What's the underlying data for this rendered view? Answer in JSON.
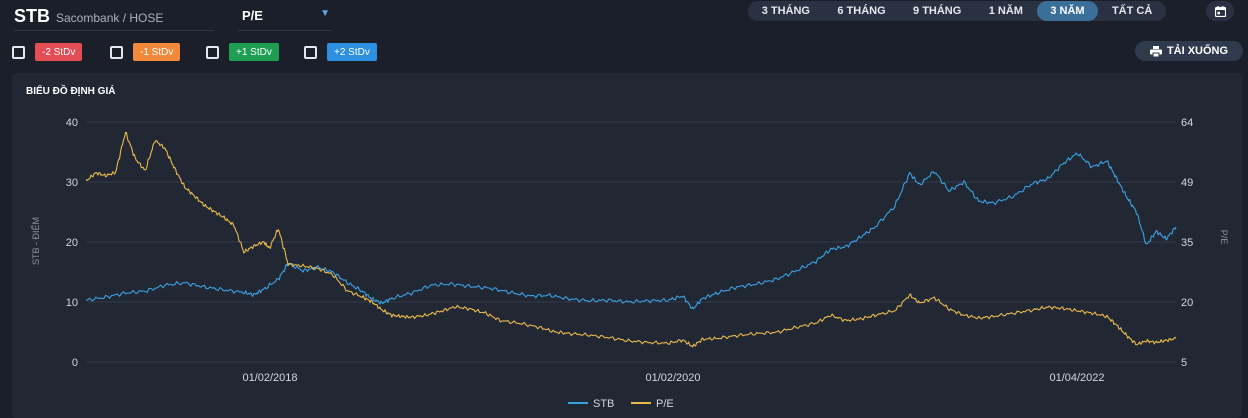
{
  "header": {
    "symbol": "STB",
    "exchange": "Sacombank / HOSE",
    "metric": "P/E"
  },
  "ranges": {
    "items": [
      "3 THÁNG",
      "6 THÁNG",
      "9 THÁNG",
      "1 NĂM",
      "3 NĂM",
      "TẤT CẢ"
    ],
    "active": "3 NĂM"
  },
  "stdv": [
    {
      "label": "-2 StDv",
      "color": "#e34d55",
      "checked": false
    },
    {
      "label": "-1 StDv",
      "color": "#f28a3c",
      "checked": false
    },
    {
      "label": "+1 StDv",
      "color": "#1e9e52",
      "checked": false
    },
    {
      "label": "+2 StDv",
      "color": "#2f8fe0",
      "checked": false
    }
  ],
  "download_label": "TẢI XUỐNG",
  "panel_title": "BIỂU ĐỒ ĐỊNH GIÁ",
  "chart_data": {
    "type": "line",
    "title": "BIỂU ĐỒ ĐỊNH GIÁ",
    "x_ticks": [
      "01/02/2018",
      "01/02/2020",
      "01/04/2022"
    ],
    "y_left": {
      "label": "STB - ĐIỂM",
      "range": [
        0,
        40
      ],
      "ticks": [
        0,
        10,
        20,
        30,
        40
      ]
    },
    "y_right": {
      "label": "P/E",
      "range": [
        5,
        64
      ],
      "ticks": [
        5,
        20,
        35,
        49,
        64
      ]
    },
    "x_index_range": [
      0,
      100
    ],
    "grid": true,
    "legend_position": "bottom",
    "series": [
      {
        "name": "STB",
        "axis": "left",
        "color": "#3aa1e0",
        "points": [
          [
            0,
            10.3
          ],
          [
            2,
            10.8
          ],
          [
            4,
            11.5
          ],
          [
            6,
            11.8
          ],
          [
            8,
            12.8
          ],
          [
            10,
            13.2
          ],
          [
            12,
            12.5
          ],
          [
            14,
            12.0
          ],
          [
            16,
            11.6
          ],
          [
            17,
            11.2
          ],
          [
            18,
            12.1
          ],
          [
            19.5,
            13.8
          ],
          [
            20.5,
            16.5
          ],
          [
            22,
            15.2
          ],
          [
            23.5,
            15.8
          ],
          [
            25,
            15.0
          ],
          [
            26.5,
            13.2
          ],
          [
            28,
            11.8
          ],
          [
            29,
            10.5
          ],
          [
            30,
            9.8
          ],
          [
            31,
            10.6
          ],
          [
            33,
            11.5
          ],
          [
            35,
            12.8
          ],
          [
            37,
            13.0
          ],
          [
            39,
            12.6
          ],
          [
            41,
            12.3
          ],
          [
            43,
            11.6
          ],
          [
            45,
            11.0
          ],
          [
            47,
            11.1
          ],
          [
            49,
            10.5
          ],
          [
            51,
            10.2
          ],
          [
            53,
            10.3
          ],
          [
            55,
            10.0
          ],
          [
            57,
            10.2
          ],
          [
            59,
            10.3
          ],
          [
            60.5,
            11.0
          ],
          [
            61.5,
            8.8
          ],
          [
            62.5,
            10.6
          ],
          [
            64,
            11.5
          ],
          [
            66,
            12.5
          ],
          [
            68,
            13.0
          ],
          [
            70,
            13.8
          ],
          [
            72,
            15.2
          ],
          [
            74,
            16.8
          ],
          [
            75.5,
            18.8
          ],
          [
            77,
            19.2
          ],
          [
            78.5,
            20.8
          ],
          [
            80,
            22.5
          ],
          [
            82,
            26.0
          ],
          [
            83.5,
            31.5
          ],
          [
            84.5,
            29.5
          ],
          [
            86,
            31.8
          ],
          [
            87.5,
            28.5
          ],
          [
            89,
            30.0
          ],
          [
            90.5,
            26.8
          ],
          [
            92,
            26.5
          ],
          [
            94,
            27.6
          ],
          [
            96,
            29.8
          ],
          [
            97.5,
            30.5
          ],
          [
            99,
            33.0
          ],
          [
            100.5,
            34.8
          ],
          [
            102,
            32.5
          ],
          [
            103.5,
            33.5
          ],
          [
            104.5,
            30.5
          ],
          [
            105.5,
            27.5
          ],
          [
            106.5,
            25.0
          ],
          [
            107.5,
            19.5
          ],
          [
            108.5,
            21.8
          ],
          [
            109.5,
            20.5
          ],
          [
            110.5,
            22.5
          ]
        ]
      },
      {
        "name": "P/E",
        "axis": "right",
        "color": "#e8b84c",
        "points": [
          [
            0,
            49.5
          ],
          [
            1,
            51.5
          ],
          [
            2,
            50.8
          ],
          [
            3,
            51.6
          ],
          [
            4,
            61.5
          ],
          [
            5,
            55.0
          ],
          [
            6,
            52.0
          ],
          [
            7,
            59.5
          ],
          [
            8,
            57.5
          ],
          [
            9,
            52.5
          ],
          [
            10,
            48.0
          ],
          [
            11,
            45.8
          ],
          [
            12,
            43.5
          ],
          [
            13,
            42.0
          ],
          [
            14,
            40.5
          ],
          [
            15,
            38.6
          ],
          [
            16,
            32.0
          ],
          [
            17,
            33.5
          ],
          [
            18,
            34.5
          ],
          [
            18.6,
            33.0
          ],
          [
            19.5,
            37.8
          ],
          [
            20.5,
            29.0
          ],
          [
            22,
            28.6
          ],
          [
            23.5,
            28.0
          ],
          [
            25,
            26.5
          ],
          [
            26.5,
            22.5
          ],
          [
            28,
            21.0
          ],
          [
            29,
            19.8
          ],
          [
            30,
            17.8
          ],
          [
            31,
            16.5
          ],
          [
            32,
            16.2
          ],
          [
            33,
            16.0
          ],
          [
            34.5,
            16.5
          ],
          [
            36,
            17.5
          ],
          [
            37.5,
            18.6
          ],
          [
            39,
            18.0
          ],
          [
            40.5,
            17.0
          ],
          [
            42,
            15.2
          ],
          [
            44,
            14.5
          ],
          [
            46,
            13.5
          ],
          [
            47.5,
            12.4
          ],
          [
            49,
            12.0
          ],
          [
            51,
            11.6
          ],
          [
            53,
            11.0
          ],
          [
            55,
            10.2
          ],
          [
            57,
            9.8
          ],
          [
            59,
            9.6
          ],
          [
            60.5,
            10.4
          ],
          [
            61.5,
            8.8
          ],
          [
            62.5,
            10.6
          ],
          [
            64,
            10.8
          ],
          [
            66,
            11.5
          ],
          [
            68,
            12.0
          ],
          [
            70,
            12.3
          ],
          [
            72,
            13.5
          ],
          [
            74,
            14.6
          ],
          [
            75.5,
            16.5
          ],
          [
            77,
            15.2
          ],
          [
            78.5,
            15.6
          ],
          [
            80,
            16.5
          ],
          [
            82,
            17.6
          ],
          [
            83.5,
            21.5
          ],
          [
            84.5,
            19.5
          ],
          [
            86,
            20.8
          ],
          [
            87.5,
            18.0
          ],
          [
            89,
            16.5
          ],
          [
            90.5,
            15.8
          ],
          [
            92,
            16.2
          ],
          [
            94,
            17.0
          ],
          [
            96,
            17.8
          ],
          [
            97.5,
            18.5
          ],
          [
            99,
            18.2
          ],
          [
            100.5,
            17.6
          ],
          [
            102,
            17.0
          ],
          [
            103.5,
            16.2
          ],
          [
            104.5,
            14.0
          ],
          [
            105.5,
            11.5
          ],
          [
            106.5,
            9.3
          ],
          [
            107.5,
            10.2
          ],
          [
            108.5,
            9.8
          ],
          [
            109.5,
            10.3
          ],
          [
            110.5,
            10.8
          ]
        ]
      }
    ]
  }
}
